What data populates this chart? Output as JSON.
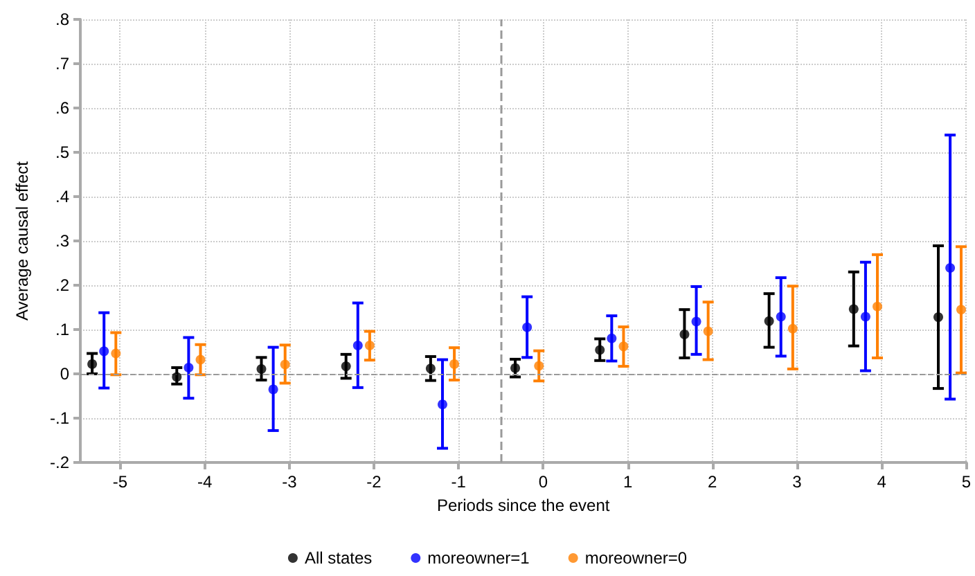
{
  "chart_data": {
    "type": "scatter",
    "xlabel": "Periods since the event",
    "ylabel": "Average causal effect",
    "xlim": [
      -5.47,
      5.0
    ],
    "xticks": [
      -5,
      -4,
      -3,
      -2,
      -1,
      0,
      1,
      2,
      3,
      4,
      5
    ],
    "ylim": [
      -0.2,
      0.8
    ],
    "yticks": [
      {
        "value": -0.2,
        "label": "-.2"
      },
      {
        "value": -0.1,
        "label": "-.1"
      },
      0,
      {
        "value": 0.1,
        "label": ".1"
      },
      {
        "value": 0.2,
        "label": ".2"
      },
      {
        "value": 0.3,
        "label": ".3"
      },
      {
        "value": 0.4,
        "label": ".4"
      },
      {
        "value": 0.5,
        "label": ".5"
      },
      {
        "value": 0.6,
        "label": ".6"
      },
      {
        "value": 0.7,
        "label": ".7"
      },
      {
        "value": 0.8,
        "label": ".8"
      }
    ],
    "grid": true,
    "legend": "bottom",
    "marker": "circle",
    "ref_lines": [
      {
        "axis": "x",
        "value": -0.5,
        "color": "#999999",
        "line_style": "dashed"
      },
      {
        "axis": "y",
        "value": 0,
        "color": "#999999",
        "line_style": "dashed"
      }
    ],
    "series": [
      {
        "name": "All states",
        "color": "#000000",
        "x": [
          -5.33,
          -4.33,
          -3.33,
          -2.33,
          -1.33,
          -0.33,
          0.67,
          1.67,
          2.67,
          3.67,
          4.67
        ],
        "values": [
          0.022,
          -0.007,
          0.011,
          0.017,
          0.012,
          0.013,
          0.054,
          0.089,
          0.119,
          0.146,
          0.128
        ],
        "errors": [
          [
            0.0,
            0.046
          ],
          [
            -0.023,
            0.014
          ],
          [
            -0.014,
            0.037
          ],
          [
            -0.01,
            0.044
          ],
          [
            -0.015,
            0.039
          ],
          [
            -0.007,
            0.033
          ],
          [
            0.03,
            0.079
          ],
          [
            0.036,
            0.145
          ],
          [
            0.06,
            0.181
          ],
          [
            0.063,
            0.23
          ],
          [
            -0.033,
            0.289
          ]
        ]
      },
      {
        "name": "moreowner=1",
        "color": "#0000ff",
        "x": [
          -5.19,
          -4.19,
          -3.19,
          -2.19,
          -1.19,
          -0.19,
          0.81,
          1.81,
          2.81,
          3.81,
          4.81
        ],
        "values": [
          0.051,
          0.014,
          -0.035,
          0.064,
          -0.069,
          0.105,
          0.08,
          0.118,
          0.129,
          0.129,
          0.239
        ],
        "errors": [
          [
            -0.032,
            0.138
          ],
          [
            -0.055,
            0.082
          ],
          [
            -0.128,
            0.06
          ],
          [
            -0.031,
            0.16
          ],
          [
            -0.168,
            0.032
          ],
          [
            0.037,
            0.174
          ],
          [
            0.029,
            0.131
          ],
          [
            0.044,
            0.197
          ],
          [
            0.04,
            0.217
          ],
          [
            0.007,
            0.252
          ],
          [
            -0.057,
            0.539
          ]
        ]
      },
      {
        "name": "moreowner=0",
        "color": "#ff8000",
        "x": [
          -5.05,
          -4.05,
          -3.05,
          -2.05,
          -1.05,
          -0.05,
          0.95,
          1.95,
          2.95,
          3.95,
          4.94
        ],
        "values": [
          0.046,
          0.032,
          0.021,
          0.064,
          0.022,
          0.018,
          0.062,
          0.096,
          0.102,
          0.152,
          0.145
        ],
        "errors": [
          [
            -0.002,
            0.093
          ],
          [
            -0.002,
            0.066
          ],
          [
            -0.021,
            0.065
          ],
          [
            0.031,
            0.096
          ],
          [
            -0.014,
            0.059
          ],
          [
            -0.016,
            0.052
          ],
          [
            0.017,
            0.106
          ],
          [
            0.032,
            0.162
          ],
          [
            0.011,
            0.198
          ],
          [
            0.036,
            0.269
          ],
          [
            0.002,
            0.287
          ]
        ]
      }
    ]
  }
}
